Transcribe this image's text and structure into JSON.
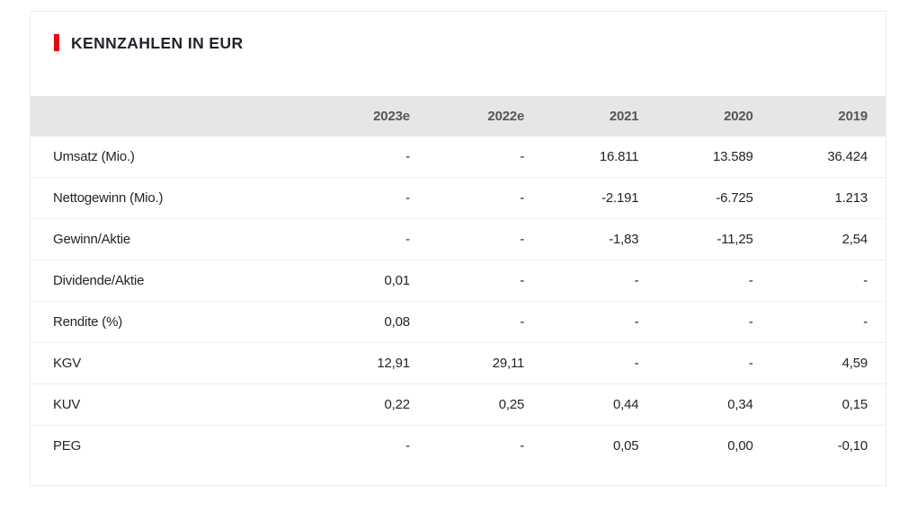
{
  "title": "KENNZAHLEN IN EUR",
  "accent_color": "#e30613",
  "header_band_color": "#e6e6e6",
  "header_text_color": "#55565b",
  "body_text_color": "#23232d",
  "chart_data": {
    "type": "table",
    "title": "KENNZAHLEN IN EUR",
    "columns": [
      "",
      "2023e",
      "2022e",
      "2021",
      "2020",
      "2019"
    ],
    "rows": [
      {
        "label": "Umsatz (Mio.)",
        "values": [
          "-",
          "-",
          "16.811",
          "13.589",
          "36.424"
        ]
      },
      {
        "label": "Nettogewinn (Mio.)",
        "values": [
          "-",
          "-",
          "-2.191",
          "-6.725",
          "1.213"
        ]
      },
      {
        "label": "Gewinn/Aktie",
        "values": [
          "-",
          "-",
          "-1,83",
          "-11,25",
          "2,54"
        ]
      },
      {
        "label": "Dividende/Aktie",
        "values": [
          "0,01",
          "-",
          "-",
          "-",
          "-"
        ]
      },
      {
        "label": "Rendite (%)",
        "values": [
          "0,08",
          "-",
          "-",
          "-",
          "-"
        ]
      },
      {
        "label": "KGV",
        "values": [
          "12,91",
          "29,11",
          "-",
          "-",
          "4,59"
        ]
      },
      {
        "label": "KUV",
        "values": [
          "0,22",
          "0,25",
          "0,44",
          "0,34",
          "0,15"
        ]
      },
      {
        "label": "PEG",
        "values": [
          "-",
          "-",
          "0,05",
          "0,00",
          "-0,10"
        ]
      }
    ]
  }
}
